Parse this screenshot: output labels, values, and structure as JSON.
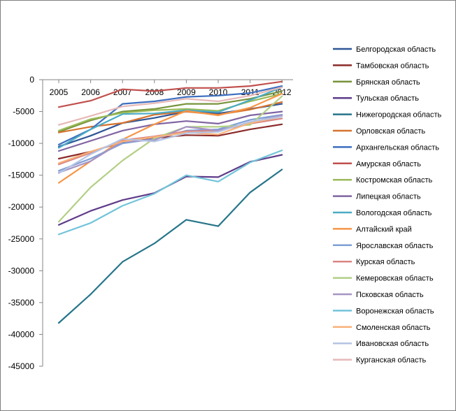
{
  "chart_data": {
    "type": "line",
    "title": "",
    "xlabel": "",
    "ylabel": "",
    "x": [
      "2005",
      "2006",
      "2007",
      "2008",
      "2009",
      "2010",
      "2011",
      "2012"
    ],
    "y_ticks": [
      "0",
      "-5000",
      "-10000",
      "-15000",
      "-20000",
      "-25000",
      "-30000",
      "-35000",
      "-40000",
      "-45000"
    ],
    "ylim": [
      -45000,
      0
    ],
    "grid": false,
    "legend_position": "right",
    "series": [
      {
        "name": "Белгородская область",
        "color": "#2f5597",
        "values": [
          -10500,
          -8800,
          -6800,
          -6000,
          -5000,
          -5300,
          -4600,
          -3800
        ]
      },
      {
        "name": "Тамбовская область",
        "color": "#8b2a2a",
        "values": [
          -12400,
          -11300,
          -9800,
          -9200,
          -8700,
          -8800,
          -7800,
          -7000
        ]
      },
      {
        "name": "Брянская область",
        "color": "#77933c",
        "values": [
          -8200,
          -6400,
          -5000,
          -4600,
          -3800,
          -3800,
          -3000,
          -1800
        ]
      },
      {
        "name": "Тульская область",
        "color": "#5f3c8a",
        "values": [
          -22800,
          -20600,
          -18900,
          -17800,
          -15200,
          -15300,
          -12900,
          -11800
        ]
      },
      {
        "name": "Нижегородская область",
        "color": "#27758a",
        "values": [
          -38200,
          -33700,
          -28600,
          -25700,
          -22000,
          -23000,
          -17700,
          -14100
        ]
      },
      {
        "name": "Орловская область",
        "color": "#d6732e",
        "values": [
          -8300,
          -7400,
          -6800,
          -5500,
          -5000,
          -5500,
          -4700,
          -3500
        ]
      },
      {
        "name": "Архангельская область",
        "color": "#3d6fc0",
        "values": [
          -10200,
          -7800,
          -3800,
          -3400,
          -2700,
          -2500,
          -2100,
          -1000
        ]
      },
      {
        "name": "Амурская область",
        "color": "#c0504d",
        "values": [
          -4300,
          -3300,
          -1500,
          -1800,
          -1300,
          -1300,
          -1000,
          -300
        ]
      },
      {
        "name": "Костромская область",
        "color": "#9bbb59",
        "values": [
          -8000,
          -6200,
          -5200,
          -4800,
          -4600,
          -4900,
          -3400,
          -2200
        ]
      },
      {
        "name": "Липецкая область",
        "color": "#8064a2",
        "values": [
          -11200,
          -9600,
          -8000,
          -7000,
          -6500,
          -6900,
          -5600,
          -5000
        ]
      },
      {
        "name": "Вологодская область",
        "color": "#4bacc6",
        "values": [
          -10700,
          -7800,
          -5400,
          -5300,
          -4800,
          -5100,
          -3200,
          -1200
        ]
      },
      {
        "name": "Алтайский край",
        "color": "#f79646",
        "values": [
          -16200,
          -12800,
          -9400,
          -7000,
          -4900,
          -5600,
          -4400,
          -2200
        ]
      },
      {
        "name": "Ярославская область",
        "color": "#7f9fd6",
        "values": [
          -14300,
          -12400,
          -10000,
          -9300,
          -8000,
          -7800,
          -6300,
          -5500
        ]
      },
      {
        "name": "Курская область",
        "color": "#d98683",
        "values": [
          -13300,
          -11500,
          -9500,
          -8900,
          -8100,
          -8000,
          -6900,
          -6100
        ]
      },
      {
        "name": "Кемеровская область",
        "color": "#b3cf86",
        "values": [
          -22300,
          -16900,
          -12700,
          -9200,
          -7400,
          -7400,
          -7100,
          -2600
        ]
      },
      {
        "name": "Псковская область",
        "color": "#a694c4",
        "values": [
          -14600,
          -12800,
          -9700,
          -9500,
          -7400,
          -8000,
          -6700,
          -5600
        ]
      },
      {
        "name": "Воронежская область",
        "color": "#72c4da",
        "values": [
          -24300,
          -22500,
          -19800,
          -17900,
          -15000,
          -16000,
          -13000,
          -11100
        ]
      },
      {
        "name": "Смоленская область",
        "color": "#f9b27a",
        "values": [
          -13100,
          -11300,
          -9700,
          -9000,
          -8300,
          -8600,
          -6800,
          -5800
        ]
      },
      {
        "name": "Ивановская область",
        "color": "#b4c4e4",
        "values": [
          -14700,
          -11700,
          -9300,
          -9700,
          -8400,
          -8200,
          -6600,
          -5800
        ]
      },
      {
        "name": "Курганская область",
        "color": "#e6b8b7",
        "values": [
          -7100,
          -5700,
          -4200,
          -3700,
          -3000,
          -3400,
          -2500,
          -1200
        ]
      }
    ]
  }
}
